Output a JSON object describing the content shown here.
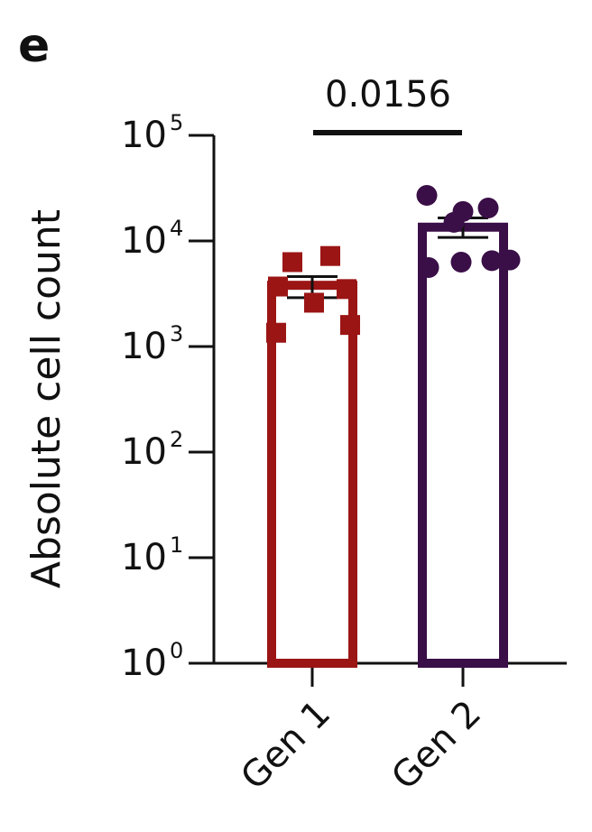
{
  "panel_label": "e",
  "chart_data": {
    "type": "bar",
    "ylabel": "Absolute cell count",
    "yscale": "log",
    "ylim": [
      1,
      100000
    ],
    "yticks": [
      {
        "base": "10",
        "exp": "5",
        "value": 100000
      },
      {
        "base": "10",
        "exp": "4",
        "value": 10000
      },
      {
        "base": "10",
        "exp": "3",
        "value": 1000
      },
      {
        "base": "10",
        "exp": "2",
        "value": 100
      },
      {
        "base": "10",
        "exp": "1",
        "value": 10
      },
      {
        "base": "10",
        "exp": "0",
        "value": 1
      }
    ],
    "categories": [
      "Gen 1",
      "Gen 2"
    ],
    "values": [
      3800,
      13500
    ],
    "error": [
      [
        2900,
        4600
      ],
      [
        10800,
        16500
      ]
    ],
    "colors": [
      "#9B1515",
      "#3A0E47"
    ],
    "markers": [
      "square",
      "circle"
    ],
    "points": [
      [
        6300,
        7200,
        3700,
        3500,
        2600,
        1600,
        1350
      ],
      [
        27000,
        19000,
        15000,
        20500,
        5600,
        6300,
        6500,
        6600
      ]
    ],
    "comparison": {
      "from": "Gen 1",
      "to": "Gen 2",
      "label": "0.0156"
    }
  }
}
